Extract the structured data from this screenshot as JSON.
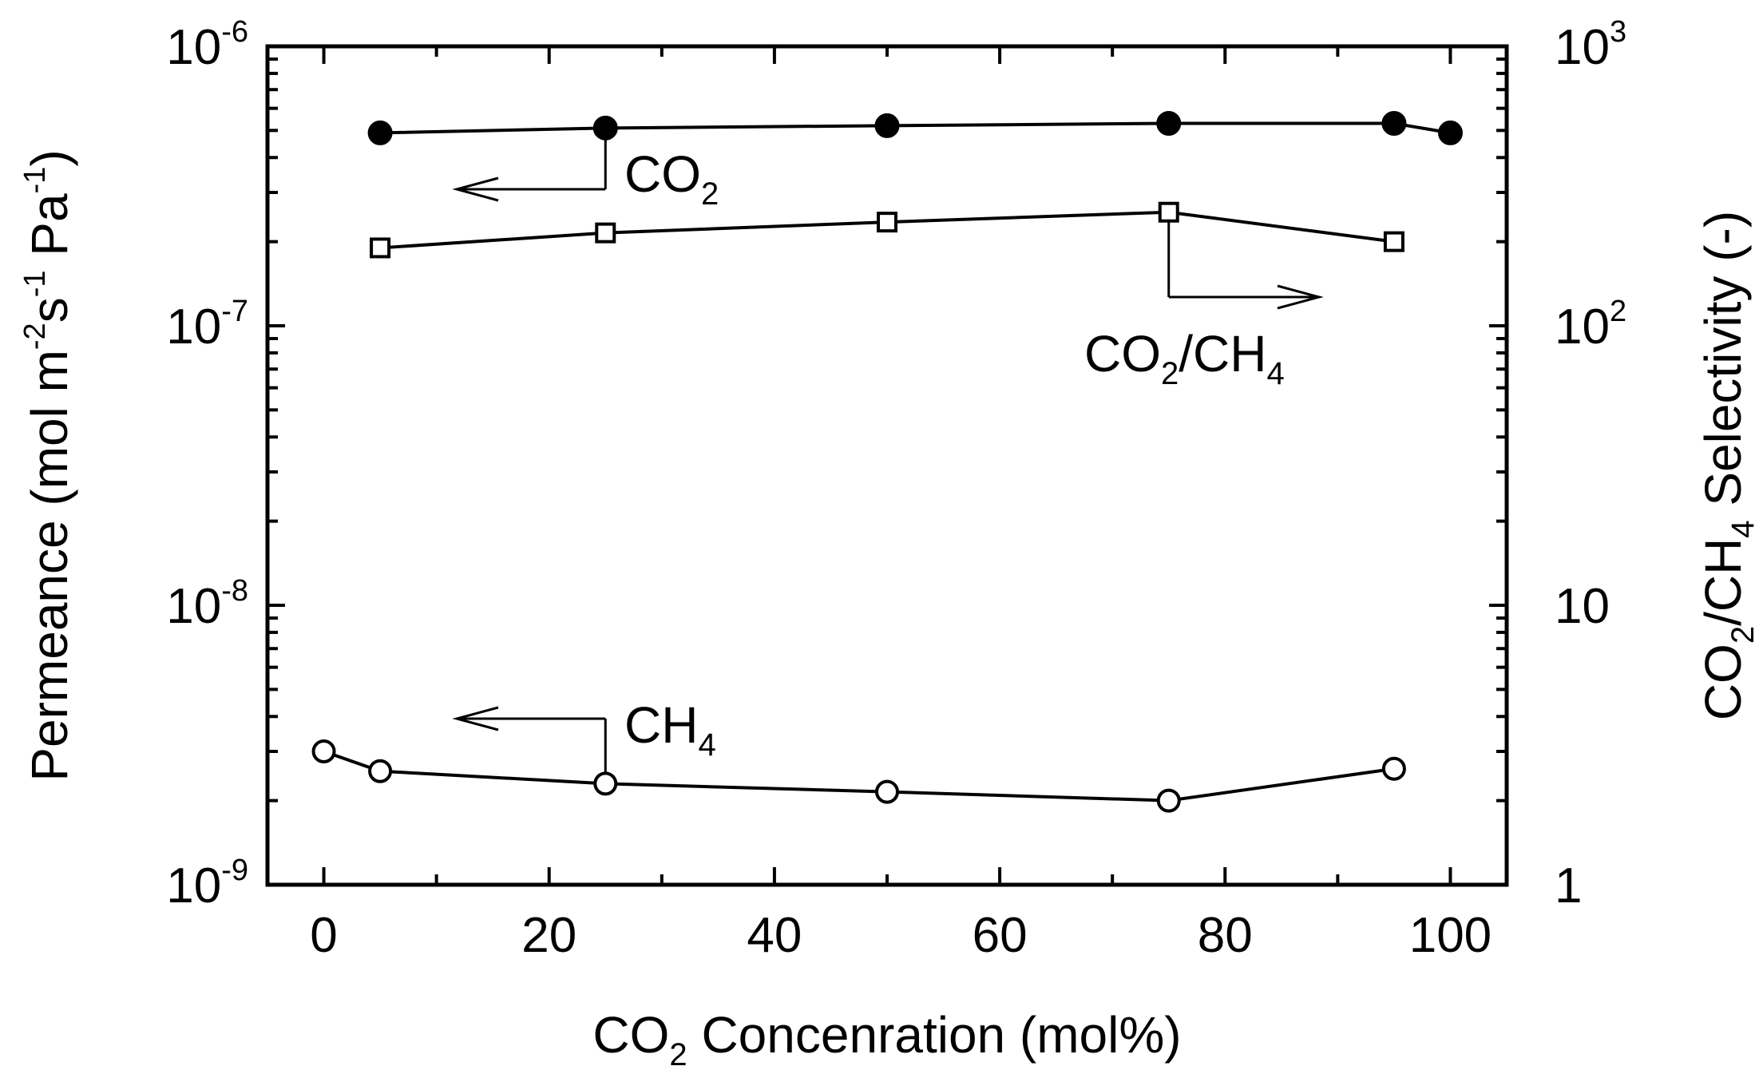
{
  "chart_data": {
    "type": "scatter",
    "xlabel": {
      "pre": "CO",
      "sub": "2",
      "post": " Concenration (mol%)"
    },
    "ylabel_left": {
      "parts": [
        "Permeance (mol m",
        "-2",
        "s",
        "-1",
        " Pa",
        "-1",
        ")"
      ]
    },
    "ylabel_right": {
      "pre": "CO",
      "sub1": "2",
      "mid": "/CH",
      "sub2": "4",
      "post": " Selectivity (-)"
    },
    "xlim": [
      -5,
      105
    ],
    "x_ticks": [
      "0",
      "20",
      "40",
      "60",
      "80",
      "100"
    ],
    "ylim_left": [
      1e-09,
      1e-06
    ],
    "y_scale_left": "log",
    "y_ticks_left": [
      {
        "base": "10",
        "exp": "-9"
      },
      {
        "base": "10",
        "exp": "-8"
      },
      {
        "base": "10",
        "exp": "-7"
      },
      {
        "base": "10",
        "exp": "-6"
      }
    ],
    "ylim_right": [
      1,
      1000
    ],
    "y_scale_right": "log",
    "y_ticks_right": [
      {
        "base": "1",
        "exp": ""
      },
      {
        "base": "10",
        "exp": ""
      },
      {
        "base": "10",
        "exp": "2"
      },
      {
        "base": "10",
        "exp": "3"
      }
    ],
    "series": [
      {
        "name": {
          "pre": "CO",
          "sub": "2",
          "post": ""
        },
        "axis": "left",
        "marker": "filled-circle",
        "x": [
          5,
          25,
          50,
          75,
          95,
          100
        ],
        "y": [
          4.9e-07,
          5.1e-07,
          5.2e-07,
          5.3e-07,
          5.3e-07,
          4.9e-07
        ]
      },
      {
        "name": {
          "pre": "CO",
          "sub": "2",
          "post": "/CH",
          "sub2": "4"
        },
        "axis": "right",
        "marker": "open-square",
        "x": [
          5,
          25,
          50,
          75,
          95
        ],
        "y": [
          190,
          215,
          235,
          255,
          200
        ]
      },
      {
        "name": {
          "pre": "CH",
          "sub": "4",
          "post": ""
        },
        "axis": "left",
        "marker": "open-circle",
        "x": [
          0,
          5,
          25,
          50,
          75,
          95
        ],
        "y": [
          3e-09,
          2.55e-09,
          2.3e-09,
          2.15e-09,
          2e-09,
          2.6e-09
        ]
      }
    ]
  }
}
